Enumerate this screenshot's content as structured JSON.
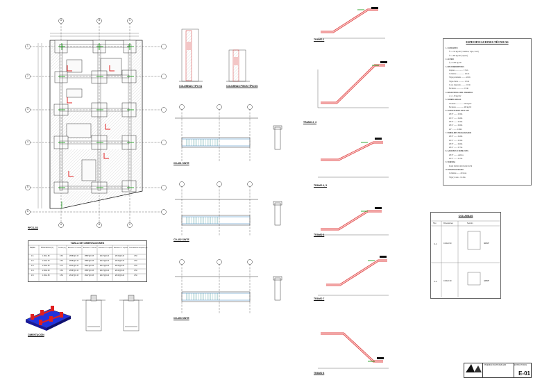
{
  "drawings": {
    "plan_title": "PFCS-2/3",
    "foundation_3d_title": "CIMENTACIÓN",
    "col_1_title": "COLUMNAS TIPO 01",
    "col_2_title": "COLUMNAS PISOS TÍPICOS",
    "sec_1_title": "CD-401 SINTE",
    "sec_2_title": "CD-402 SINTE",
    "sec_3_title": "CD-403 SINTE",
    "tramo_1": "TRAMO 1",
    "tramo_2": "TRAMO 2, 3",
    "tramo_3": "TRAMO 4, 5",
    "tramo_4": "TRAMO 6",
    "tramo_5": "TRAMO 7",
    "tramo_6": "TRAMO 8"
  },
  "axis_letters": [
    "A",
    "B",
    "C"
  ],
  "axis_numbers": [
    "1",
    "2",
    "3",
    "4",
    "5",
    "6"
  ],
  "foundation_table": {
    "title": "TABLA DE CIMENTACIONES",
    "headers": [
      "Zapata",
      "Dimensiones (m)",
      "Peralte (m)",
      "Armadura X-X inferior",
      "Armadura Y-Y inferior",
      "Armadura X-X superior",
      "Armadura Y-Y superior",
      "Profundidad de desplante (m)"
    ],
    "rows": [
      [
        "Z-1",
        "1.80x1.80",
        "0.60",
        "Ø5/8\"@0.15",
        "Ø5/8\"@0.15",
        "Ø1/2\"@0.20",
        "Ø1/2\"@0.20",
        "1.50"
      ],
      [
        "Z-2",
        "2.20x2.20",
        "0.60",
        "Ø5/8\"@0.15",
        "Ø5/8\"@0.15",
        "Ø1/2\"@0.20",
        "Ø1/2\"@0.20",
        "1.50"
      ],
      [
        "Z-3",
        "2.50x2.50",
        "0.70",
        "Ø3/4\"@0.15",
        "Ø3/4\"@0.15",
        "Ø1/2\"@0.20",
        "Ø1/2\"@0.20",
        "1.50"
      ],
      [
        "Z-4",
        "2.00x2.00",
        "0.60",
        "Ø5/8\"@0.15",
        "Ø5/8\"@0.15",
        "Ø1/2\"@0.20",
        "Ø1/2\"@0.20",
        "1.50"
      ],
      [
        "Z-5",
        "1.50x1.50",
        "0.50",
        "Ø1/2\"@0.15",
        "Ø1/2\"@0.15",
        "Ø1/2\"@0.20",
        "Ø1/2\"@0.20",
        "1.50"
      ]
    ]
  },
  "specs": {
    "title": "ESPECIFICACIONES TÉCNICAS",
    "lines": [
      "1. CONCRETO",
      "f'c = 210 kg/cm² (columnas, vigas, losas)",
      "f'c = 280 kg/cm² (zapatas)",
      "2. ACERO",
      "fy = 4200 kg/cm²",
      "3. RECUBRIMIENTOS",
      "Zapatas .................. 7.5cm",
      "Columnas ................. 4.0cm",
      "Vigas peraltadas ......... 4.0cm",
      "Vigas chatas ............. 2.5cm",
      "Losas aligeradas ......... 2.0cm",
      "Escaleras ................ 2.5cm",
      "4. RESISTENCIA DEL TERRENO",
      "σt = 1.50 kg/cm²",
      "5. SOBRECARGAS",
      "Vivienda ................. 200 kg/m²",
      "Escaleras ................ 400 kg/m²",
      "6. LONGITUD DE ANCLAJE",
      "Ø3/8\" ........ 0.30m",
      "Ø1/2\" ........ 0.40m",
      "Ø5/8\" ........ 0.50m",
      "Ø3/4\" ........ 0.60m",
      "Ø1\" .......... 0.80m",
      "7. EMPALMES TRASLAPADOS",
      "Ø3/8\" ........ 0.40m",
      "Ø1/2\" ........ 0.50m",
      "Ø5/8\" ........ 0.60m",
      "Ø3/4\" ........ 0.75m",
      "8. GANCHOS Y DOBLECES",
      "Ø3/8\" ........ estribos",
      "Ø1/2\" ........ 0.15m",
      "9. NORMAS",
      "E.020 E.030 E.050 E.060 E.070",
      "10. DESENCOFRADO",
      "Columnas ....... 24 horas",
      "Vigas y losas .. 14 días"
    ]
  },
  "columns_box": {
    "title": "COLUMNAS",
    "headers": [
      "Tipo",
      "Dimensiones",
      "Sección"
    ],
    "rows": [
      {
        "tipo": "C-1",
        "dim": "0.30x0.50",
        "acero": "8Ø5/8\""
      },
      {
        "tipo": "C-2",
        "dim": "0.30x0.30",
        "acero": "4Ø5/8\""
      }
    ]
  },
  "title_block": {
    "project": "VIVIENDA MULTIFAMILIAR",
    "content": "ESTRUCTURAS",
    "sheet": "E-01"
  }
}
